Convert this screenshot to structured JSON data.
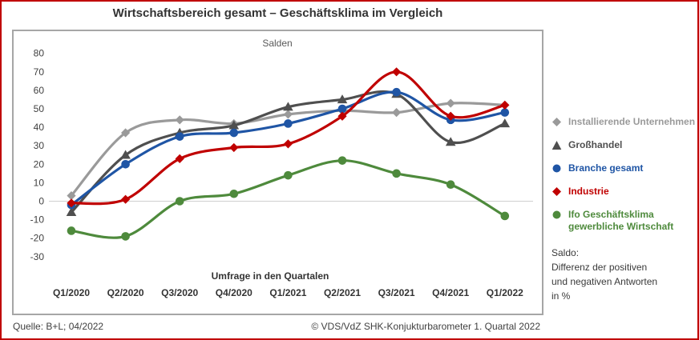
{
  "title": "Wirtschaftsbereich gesamt – Geschäftsklima im Vergleich",
  "chart_data": {
    "type": "line",
    "subtitle": "Salden",
    "xlabel": "Umfrage in den Quartalen",
    "categories": [
      "Q1/2020",
      "Q2/2020",
      "Q3/2020",
      "Q4/2020",
      "Q1/2021",
      "Q2/2021",
      "Q3/2021",
      "Q4/2021",
      "Q1/2022"
    ],
    "ylim": [
      -30,
      80
    ],
    "ytick_step": 10,
    "grid": "zero-line-only",
    "legend_position": "right",
    "series": [
      {
        "name": "Installierende Unternehmen",
        "name_lines": [
          "Installierende Unternehmen"
        ],
        "marker": "diamond",
        "color": "#9a9a9a",
        "values": [
          3,
          37,
          44,
          42,
          47,
          49,
          48,
          53,
          52
        ]
      },
      {
        "name": "Großhandel",
        "name_lines": [
          "Großhandel"
        ],
        "marker": "triangle",
        "color": "#4f4f4f",
        "values": [
          -6,
          25,
          37,
          41,
          51,
          55,
          58,
          32,
          42
        ]
      },
      {
        "name": "Branche gesamt",
        "name_lines": [
          "Branche gesamt"
        ],
        "marker": "circle",
        "color": "#1f55a5",
        "values": [
          -2,
          20,
          35,
          37,
          42,
          50,
          59,
          44,
          48
        ]
      },
      {
        "name": "Industrie",
        "name_lines": [
          "Industrie"
        ],
        "marker": "diamond",
        "color": "#c00000",
        "values": [
          -1,
          1,
          23,
          29,
          31,
          46,
          70,
          46,
          52
        ]
      },
      {
        "name": "Ifo Geschäftsklima gewerbliche Wirtschaft",
        "name_lines": [
          "Ifo Geschäftsklima",
          "gewerbliche Wirtschaft"
        ],
        "marker": "circle",
        "color": "#4e8a3c",
        "values": [
          -16,
          -19,
          0,
          4,
          14,
          22,
          15,
          9,
          -8
        ]
      }
    ]
  },
  "legend_note": [
    "Saldo:",
    "Differenz der positiven",
    "und negativen Antworten",
    "in %"
  ],
  "footer": {
    "source": "Quelle: B+L; 04/2022",
    "copyright": "© VDS/VdZ SHK-Konjukturbarometer 1. Quartal 2022"
  },
  "colors": {
    "page_border": "#c00000",
    "chart_border": "#a6a6a6",
    "zero_line": "#cfcfcf",
    "axis_text": "#404040",
    "subtitle_text": "#595959",
    "title_text": "#333333"
  }
}
